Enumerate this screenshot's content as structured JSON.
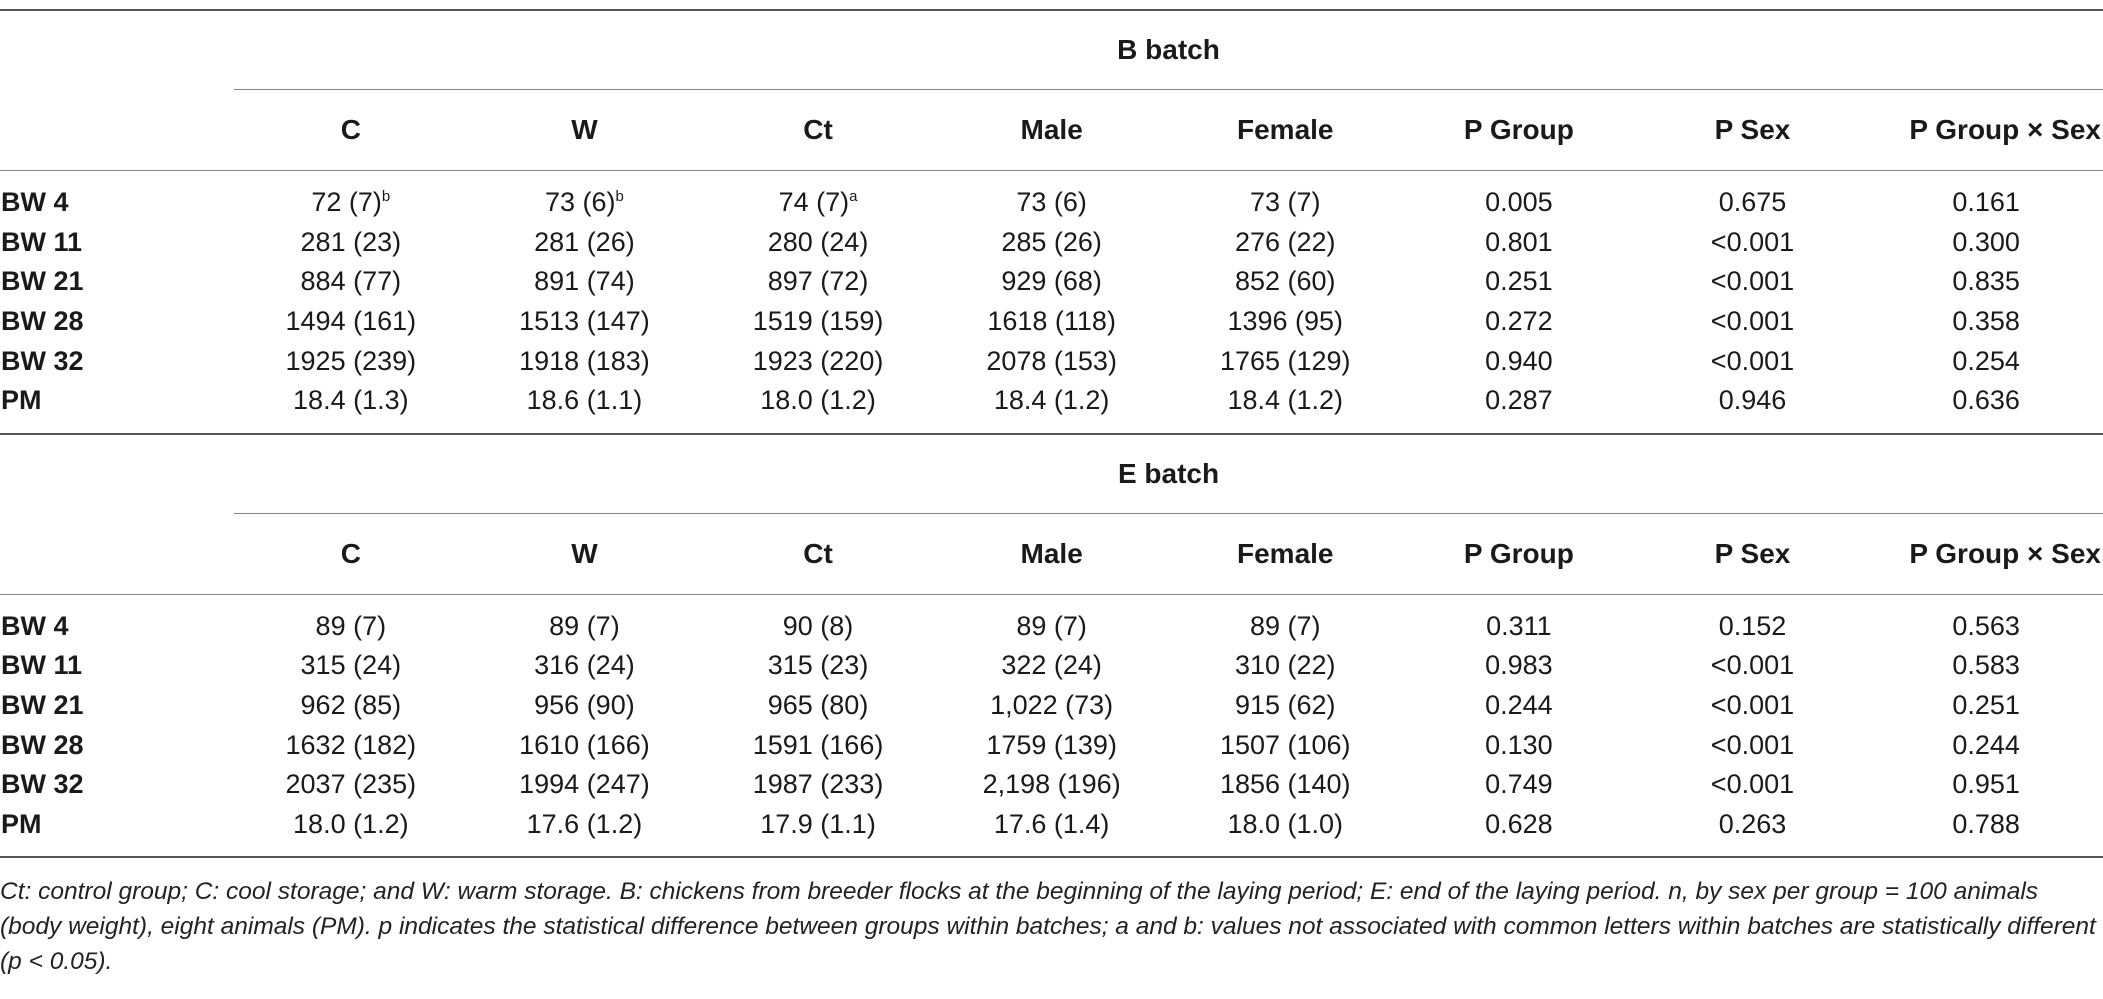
{
  "columns": [
    "C",
    "W",
    "Ct",
    "Male",
    "Female",
    "P Group",
    "P Sex",
    "P Group × Sex"
  ],
  "b_batch": {
    "title": "B batch",
    "rows": [
      {
        "label": "BW 4",
        "cells": [
          "72 (7)",
          "73 (6)",
          "74 (7)",
          "73 (6)",
          "73 (7)",
          "0.005",
          "0.675",
          "0.161"
        ],
        "sups": [
          "b",
          "b",
          "a",
          "",
          "",
          "",
          "",
          ""
        ]
      },
      {
        "label": "BW 11",
        "cells": [
          "281 (23)",
          "281 (26)",
          "280 (24)",
          "285 (26)",
          "276 (22)",
          "0.801",
          "<0.001",
          "0.300"
        ],
        "sups": [
          "",
          "",
          "",
          "",
          "",
          "",
          "",
          ""
        ]
      },
      {
        "label": "BW 21",
        "cells": [
          "884 (77)",
          "891 (74)",
          "897 (72)",
          "929 (68)",
          "852 (60)",
          "0.251",
          "<0.001",
          "0.835"
        ],
        "sups": [
          "",
          "",
          "",
          "",
          "",
          "",
          "",
          ""
        ]
      },
      {
        "label": "BW 28",
        "cells": [
          "1494 (161)",
          "1513 (147)",
          "1519 (159)",
          "1618 (118)",
          "1396 (95)",
          "0.272",
          "<0.001",
          "0.358"
        ],
        "sups": [
          "",
          "",
          "",
          "",
          "",
          "",
          "",
          ""
        ]
      },
      {
        "label": "BW 32",
        "cells": [
          "1925 (239)",
          "1918 (183)",
          "1923 (220)",
          "2078 (153)",
          "1765 (129)",
          "0.940",
          "<0.001",
          "0.254"
        ],
        "sups": [
          "",
          "",
          "",
          "",
          "",
          "",
          "",
          ""
        ]
      },
      {
        "label": "PM",
        "cells": [
          "18.4 (1.3)",
          "18.6 (1.1)",
          "18.0 (1.2)",
          "18.4 (1.2)",
          "18.4 (1.2)",
          "0.287",
          "0.946",
          "0.636"
        ],
        "sups": [
          "",
          "",
          "",
          "",
          "",
          "",
          "",
          ""
        ]
      }
    ]
  },
  "e_batch": {
    "title": "E batch",
    "rows": [
      {
        "label": "BW 4",
        "cells": [
          "89 (7)",
          "89 (7)",
          "90 (8)",
          "89 (7)",
          "89 (7)",
          "0.311",
          "0.152",
          "0.563"
        ],
        "sups": [
          "",
          "",
          "",
          "",
          "",
          "",
          "",
          ""
        ]
      },
      {
        "label": "BW 11",
        "cells": [
          "315 (24)",
          "316 (24)",
          "315 (23)",
          "322 (24)",
          "310 (22)",
          "0.983",
          "<0.001",
          "0.583"
        ],
        "sups": [
          "",
          "",
          "",
          "",
          "",
          "",
          "",
          ""
        ]
      },
      {
        "label": "BW 21",
        "cells": [
          "962 (85)",
          "956 (90)",
          "965 (80)",
          "1,022 (73)",
          "915 (62)",
          "0.244",
          "<0.001",
          "0.251"
        ],
        "sups": [
          "",
          "",
          "",
          "",
          "",
          "",
          "",
          ""
        ]
      },
      {
        "label": "BW 28",
        "cells": [
          "1632 (182)",
          "1610 (166)",
          "1591 (166)",
          "1759 (139)",
          "1507 (106)",
          "0.130",
          "<0.001",
          "0.244"
        ],
        "sups": [
          "",
          "",
          "",
          "",
          "",
          "",
          "",
          ""
        ]
      },
      {
        "label": "BW 32",
        "cells": [
          "2037 (235)",
          "1994 (247)",
          "1987 (233)",
          "2,198 (196)",
          "1856 (140)",
          "0.749",
          "<0.001",
          "0.951"
        ],
        "sups": [
          "",
          "",
          "",
          "",
          "",
          "",
          "",
          ""
        ]
      },
      {
        "label": "PM",
        "cells": [
          "18.0 (1.2)",
          "17.6 (1.2)",
          "17.9 (1.1)",
          "17.6 (1.4)",
          "18.0 (1.0)",
          "0.628",
          "0.263",
          "0.788"
        ],
        "sups": [
          "",
          "",
          "",
          "",
          "",
          "",
          "",
          ""
        ]
      }
    ]
  },
  "footnote": "Ct: control group; C: cool storage; and W: warm storage. B: chickens from breeder flocks at the beginning of the laying period; E: end of the laying period. n, by sex per group = 100 animals (body weight), eight animals (PM). p indicates the statistical difference between groups within batches; a and b: values not associated with common letters within batches are statistically different (p < 0.05)."
}
